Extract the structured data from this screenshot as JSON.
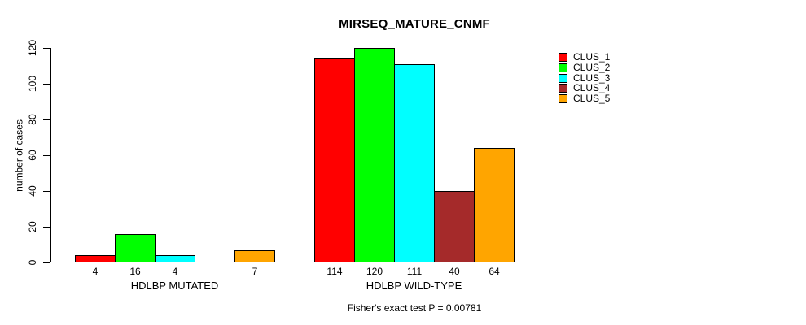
{
  "chart_data": {
    "type": "bar",
    "title": "MIRSEQ_MATURE_CNMF",
    "ylabel": "number of cases",
    "xlabel": "",
    "footer": "Fisher's exact test P = 0.00781",
    "ylim": [
      0,
      120
    ],
    "y_ticks": [
      0,
      20,
      40,
      60,
      80,
      100,
      120
    ],
    "grid": false,
    "legend_position": "right",
    "background_color": "#ffffff",
    "axis_color": "#000000",
    "series": [
      {
        "name": "CLUS_1",
        "color": "#FF0000"
      },
      {
        "name": "CLUS_2",
        "color": "#00FF00"
      },
      {
        "name": "CLUS_3",
        "color": "#00FFFF"
      },
      {
        "name": "CLUS_4",
        "color": "#A52A2A"
      },
      {
        "name": "CLUS_5",
        "color": "#FFA500"
      }
    ],
    "categories": [
      "HDLBP MUTATED",
      "HDLBP WILD-TYPE"
    ],
    "groups": [
      {
        "label": "HDLBP MUTATED",
        "values": [
          4,
          16,
          4,
          0,
          7
        ],
        "bar_labels": [
          "4",
          "16",
          "4",
          "",
          "7"
        ]
      },
      {
        "label": "HDLBP WILD-TYPE",
        "values": [
          114,
          120,
          111,
          40,
          64
        ],
        "bar_labels": [
          "114",
          "120",
          "111",
          "40",
          "64"
        ]
      }
    ]
  }
}
